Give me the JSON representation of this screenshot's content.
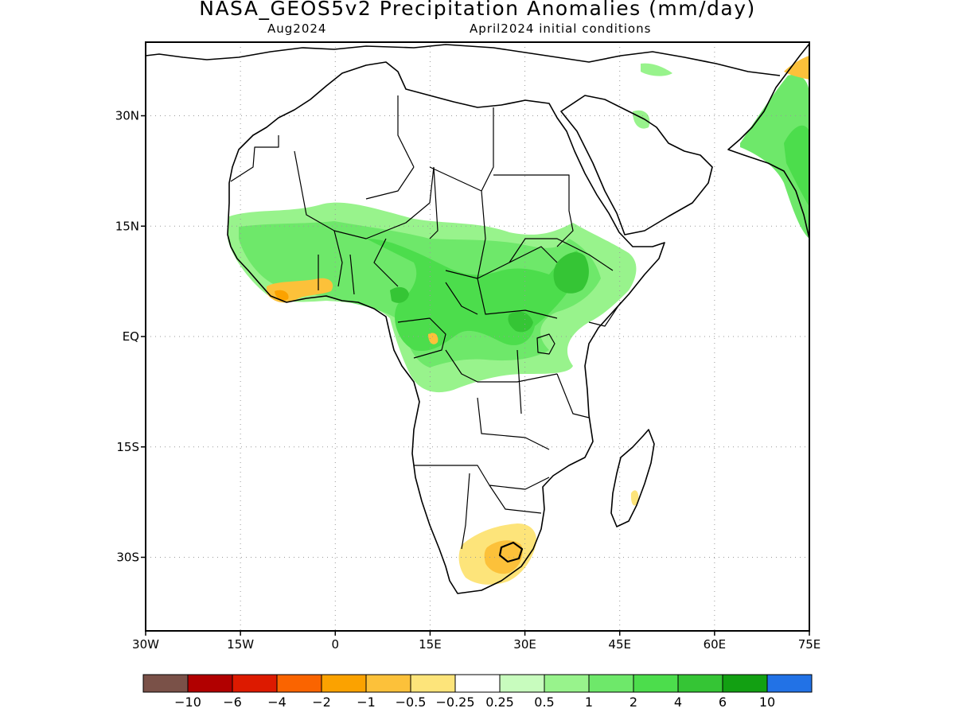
{
  "title": "NASA_GEOS5v2 Precipitation Anomalies (mm/day)",
  "forecast_month": "Aug2024",
  "initial_conditions": "April2024 initial conditions",
  "map": {
    "lon_range": [
      -30,
      75
    ],
    "lat_range": [
      -40,
      40
    ],
    "lon_ticks": [
      {
        "value": -30,
        "label": "30W"
      },
      {
        "value": -15,
        "label": "15W"
      },
      {
        "value": 0,
        "label": "0"
      },
      {
        "value": 15,
        "label": "15E"
      },
      {
        "value": 30,
        "label": "30E"
      },
      {
        "value": 45,
        "label": "45E"
      },
      {
        "value": 60,
        "label": "60E"
      },
      {
        "value": 75,
        "label": "75E"
      }
    ],
    "lat_ticks": [
      {
        "value": 30,
        "label": "30N"
      },
      {
        "value": 15,
        "label": "15N"
      },
      {
        "value": 0,
        "label": "EQ"
      },
      {
        "value": -15,
        "label": "15S"
      },
      {
        "value": -30,
        "label": "30S"
      }
    ],
    "gridlines": "dotted"
  },
  "colorbar": {
    "colors": [
      "#7a5148",
      "#b10000",
      "#dd1a00",
      "#fa6400",
      "#fba200",
      "#fcc13a",
      "#fde47a",
      "#ffffff",
      "#c8fcbe",
      "#98f38c",
      "#6ee86a",
      "#4cdd4c",
      "#35c535",
      "#12a012",
      "#2272e6"
    ],
    "labels": [
      "−10",
      "−6",
      "−4",
      "−2",
      "−1",
      "−0.5",
      "−0.25",
      "0.25",
      "0.5",
      "1",
      "2",
      "4",
      "6",
      "10"
    ]
  }
}
